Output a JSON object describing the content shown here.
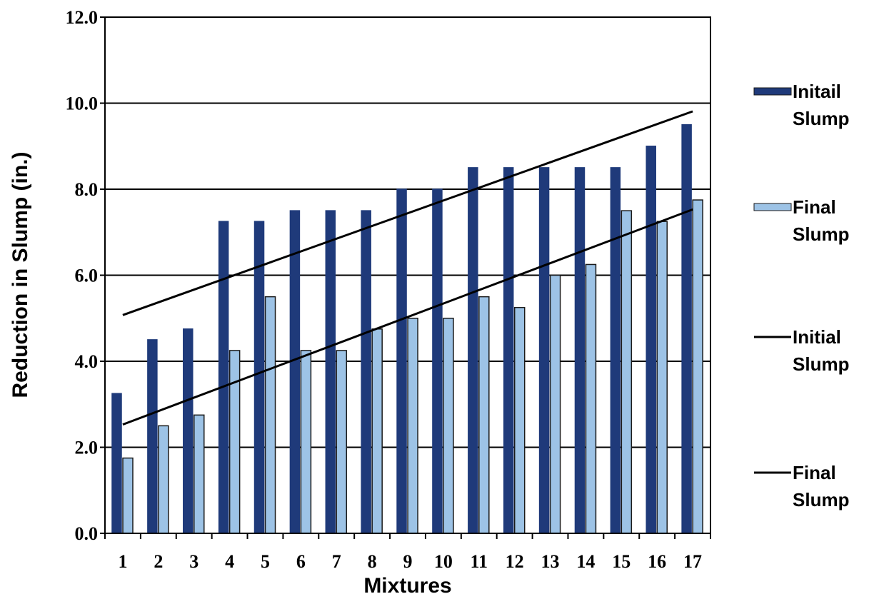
{
  "chart_data": {
    "type": "bar",
    "xlabel": "Mixtures",
    "ylabel": "Reduction in Slump (in.)",
    "categories": [
      "1",
      "2",
      "3",
      "4",
      "5",
      "6",
      "7",
      "8",
      "9",
      "10",
      "11",
      "12",
      "13",
      "14",
      "15",
      "16",
      "17"
    ],
    "series": [
      {
        "name": "Initail Slump",
        "color": "#1f3a7a",
        "values": [
          3.25,
          4.5,
          4.75,
          7.25,
          7.25,
          7.5,
          7.5,
          7.5,
          8.0,
          8.0,
          8.5,
          8.5,
          8.5,
          8.5,
          8.5,
          9.0,
          9.5
        ]
      },
      {
        "name": "Final Slump",
        "color": "#9dc3e6",
        "values": [
          1.75,
          2.5,
          2.75,
          4.25,
          5.5,
          4.25,
          4.25,
          4.75,
          5.0,
          5.0,
          5.5,
          5.25,
          6.0,
          6.25,
          7.5,
          7.25,
          7.75
        ]
      }
    ],
    "trendlines": [
      {
        "name": "Initial Slump",
        "series": 0,
        "type": "linear",
        "color": "#000000"
      },
      {
        "name": "Final Slump",
        "series": 1,
        "type": "linear",
        "color": "#000000"
      }
    ],
    "ylim": [
      0,
      12
    ],
    "yticks": [
      {
        "value": 0,
        "label": "0.0"
      },
      {
        "value": 2,
        "label": "2.0"
      },
      {
        "value": 4,
        "label": "4.0"
      },
      {
        "value": 6,
        "label": "6.0"
      },
      {
        "value": 8,
        "label": "8.0"
      },
      {
        "value": 10,
        "label": "10.0"
      },
      {
        "value": 12,
        "label": "12.0"
      }
    ],
    "grid": true,
    "legend": "right"
  }
}
